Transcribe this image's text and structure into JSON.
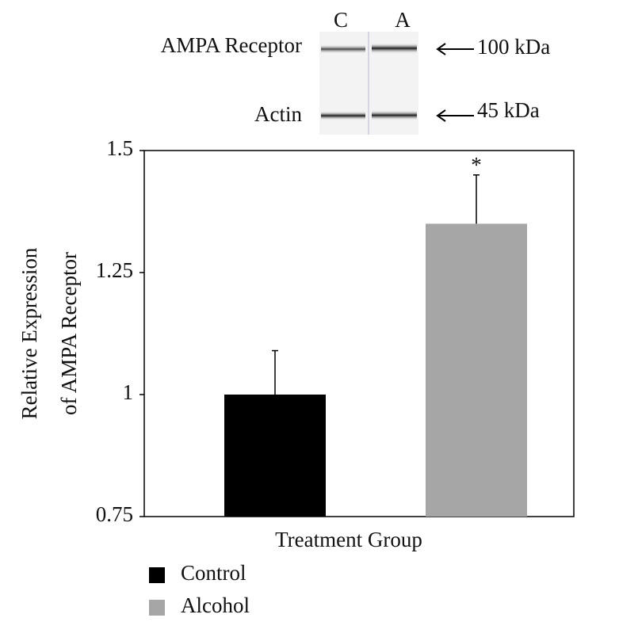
{
  "chart_data": {
    "type": "bar",
    "blot": {
      "lanes": [
        "C",
        "A"
      ],
      "rows": [
        "AMPA Receptor",
        "Actin"
      ],
      "sizes": [
        "100 kDa",
        "45 kDa"
      ]
    },
    "xlabel": "Treatment Group",
    "ylabel": [
      "Relative Expression",
      "of AMPA Receptor"
    ],
    "ylim": [
      0.75,
      1.5
    ],
    "yticks": [
      0.75,
      1,
      1.25,
      1.5
    ],
    "grid": false,
    "series": [
      {
        "name": "Control",
        "color": "#000000",
        "values": [
          1.0
        ],
        "errors": [
          0.09
        ]
      },
      {
        "name": "Alcohol",
        "color": "#a6a6a6",
        "values": [
          1.35
        ],
        "errors": [
          0.1
        ]
      }
    ],
    "annotation": "*"
  }
}
